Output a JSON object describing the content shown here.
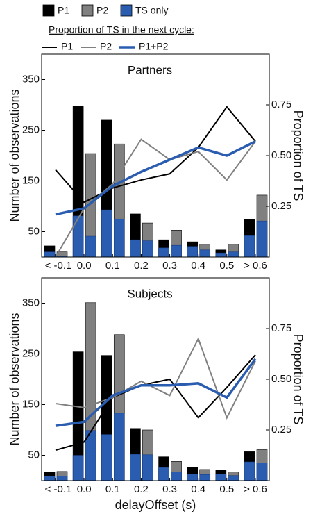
{
  "legend": {
    "bars": [
      {
        "label": "P1",
        "color": "#000000"
      },
      {
        "label": "P2",
        "color": "#808080"
      },
      {
        "label": "TS only",
        "color": "#2a5db0"
      }
    ],
    "lines_title": "Proportion of TS in the next cycle:",
    "lines": [
      {
        "label": "P1",
        "color": "#000000"
      },
      {
        "label": "P2",
        "color": "#808080"
      },
      {
        "label": "P1+P2",
        "color": "#2a5db0"
      }
    ]
  },
  "chart_data": [
    {
      "type": "bar_line",
      "title": "Partners",
      "ylabel": "Number of observations",
      "y2label": "Proportion of TS",
      "categories": [
        "< -0.1",
        "0.0",
        "0.1",
        "0.2",
        "0.3",
        "0.4",
        "0.5",
        "> 0.6"
      ],
      "ylim": [
        0,
        400
      ],
      "yticks": [
        50,
        150,
        250,
        350
      ],
      "y2lim": [
        0,
        1
      ],
      "y2ticks": [
        0.25,
        {
          "value": 0.5,
          "label": "0.50"
        },
        0.75
      ],
      "ts_color": "#2a5db0",
      "series": [
        {
          "color": "#000000",
          "values": [
            22,
            297,
            270,
            85,
            34,
            30,
            14,
            74
          ],
          "ts_values": [
            10,
            81,
            93,
            34,
            18,
            21,
            8,
            42
          ]
        },
        {
          "color": "#808080",
          "values": [
            10,
            204,
            223,
            67,
            53,
            25,
            25,
            122
          ],
          "ts_values": [
            2,
            41,
            75,
            32,
            23,
            14,
            10,
            71
          ]
        }
      ],
      "line_series": [
        {
          "color": "#000000",
          "axis": "y2",
          "values": [
            0.43,
            0.27,
            0.34,
            0.38,
            0.41,
            0.54,
            0.74,
            0.57
          ]
        },
        {
          "color": "#808080",
          "axis": "y2",
          "values": [
            0.0,
            0.24,
            0.36,
            0.58,
            0.48,
            0.52,
            0.38,
            0.57
          ]
        },
        {
          "color": "#2a5db0",
          "axis": "y2",
          "values": [
            0.21,
            0.24,
            0.35,
            0.42,
            0.48,
            0.54,
            0.5,
            0.57
          ]
        }
      ]
    },
    {
      "type": "bar_line",
      "title": "Subjects",
      "ylabel": "Number of observations",
      "y2label": "Proportion of TS",
      "xlabel": "delayOffset (s)",
      "categories": [
        "< -0.1",
        "0.0",
        "0.1",
        "0.2",
        "0.3",
        "0.4",
        "0.5",
        "> 0.6"
      ],
      "ylim": [
        0,
        400
      ],
      "yticks": [
        50,
        150,
        250,
        350
      ],
      "y2lim": [
        0,
        1
      ],
      "y2ticks": [
        0.25,
        {
          "value": 0.5,
          "label": "0.50"
        },
        0.75
      ],
      "ts_color": "#2a5db0",
      "series": [
        {
          "color": "#000000",
          "values": [
            17,
            254,
            247,
            103,
            47,
            26,
            21,
            57
          ],
          "ts_values": [
            9,
            50,
            91,
            52,
            26,
            13,
            13,
            37
          ]
        },
        {
          "color": "#808080",
          "values": [
            18,
            351,
            288,
            100,
            38,
            22,
            17,
            61
          ],
          "ts_values": [
            9,
            99,
            133,
            51,
            17,
            12,
            10,
            35
          ]
        }
      ],
      "line_series": [
        {
          "color": "#000000",
          "axis": "y2",
          "values": [
            0.15,
            0.19,
            0.41,
            0.47,
            0.5,
            0.31,
            0.46,
            0.62
          ]
        },
        {
          "color": "#808080",
          "axis": "y2",
          "values": [
            0.38,
            0.36,
            0.41,
            0.49,
            0.42,
            0.7,
            0.31,
            0.59
          ]
        },
        {
          "color": "#2a5db0",
          "axis": "y2",
          "values": [
            0.27,
            0.29,
            0.42,
            0.47,
            0.47,
            0.48,
            0.41,
            0.6
          ]
        }
      ]
    }
  ]
}
